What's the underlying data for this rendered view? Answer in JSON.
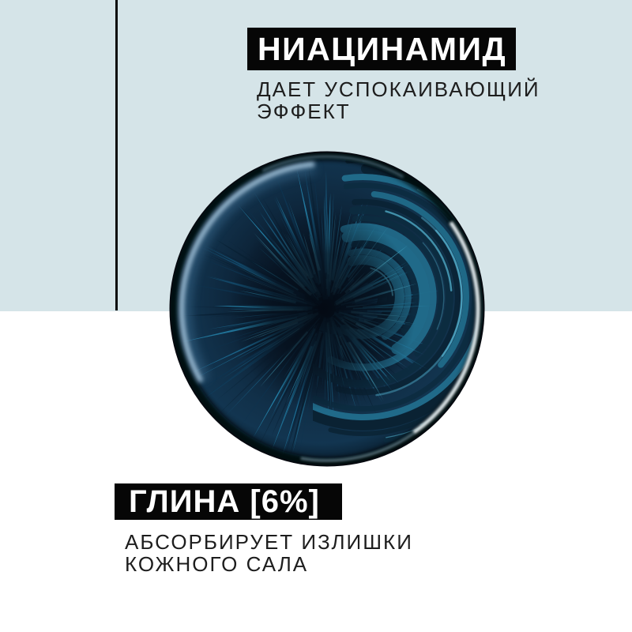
{
  "colors": {
    "background_top": "#d5e4e8",
    "background_bottom": "#ffffff",
    "banner_bg": "#060606",
    "banner_text": "#ffffff",
    "body_text": "#1d1d1d",
    "divider": "#0a0a0a"
  },
  "top_ingredient": {
    "name": "НИАЦИНАМИД",
    "description_lines": [
      "ДАЕТ УСПОКАИВАЮЩИЙ",
      "ЭФФЕКТ"
    ]
  },
  "bottom_ingredient": {
    "name": "ГЛИНА [6%]",
    "description_lines": [
      "АБСОРБИРУЕТ ИЗЛИШКИ",
      "КОЖНОГО САЛА"
    ]
  },
  "image": {
    "name": "blue-clay-macro-texture",
    "palette": [
      "#040a12",
      "#0a2134",
      "#134a6b",
      "#1b648a",
      "#2585ad",
      "#35a6cd",
      "#55c3e2",
      "#b9d8ee"
    ]
  }
}
